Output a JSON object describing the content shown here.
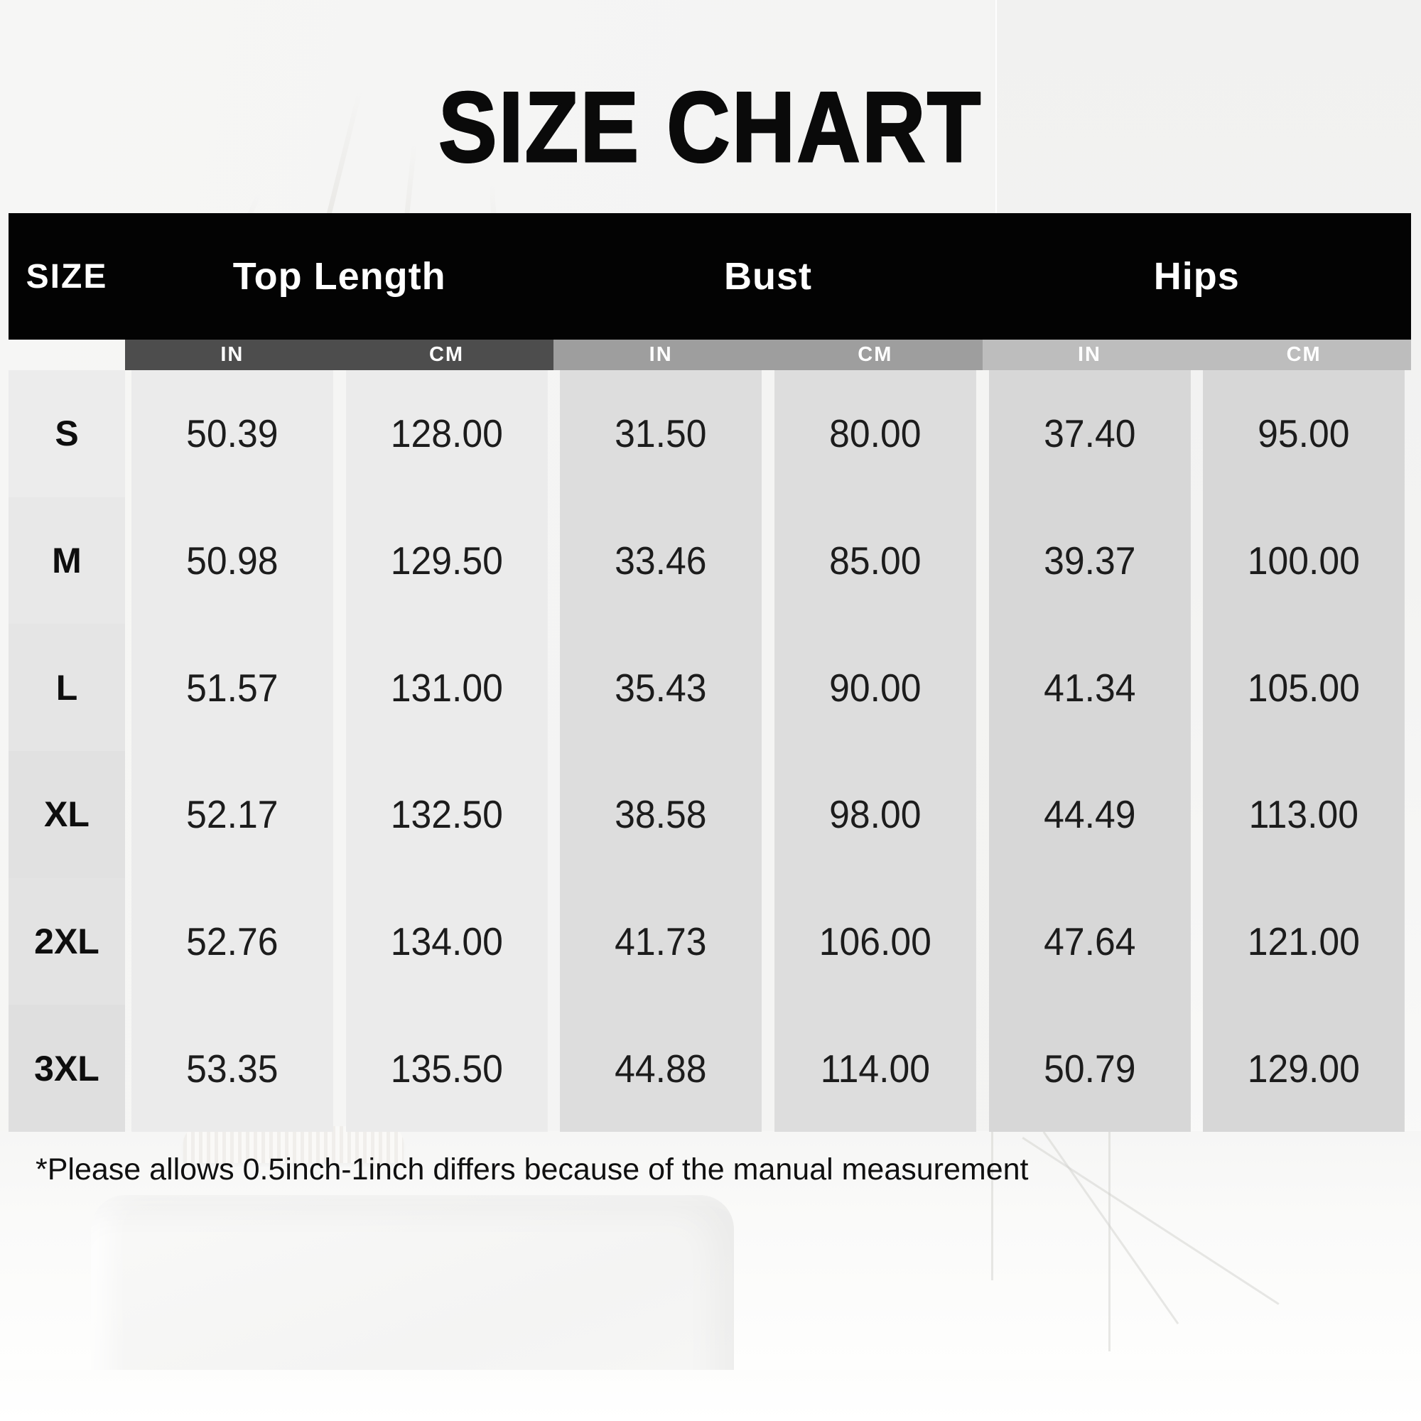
{
  "title": "SIZE CHART",
  "note": "*Please allows 0.5inch-1inch differs because of the manual measurement",
  "table": {
    "size_header": "SIZE",
    "groups": [
      {
        "label": "Top Length",
        "units": [
          "IN",
          "CM"
        ]
      },
      {
        "label": "Bust",
        "units": [
          "IN",
          "CM"
        ]
      },
      {
        "label": "Hips",
        "units": [
          "IN",
          "CM"
        ]
      }
    ],
    "rows": [
      {
        "size": "S",
        "values": [
          "50.39",
          "128.00",
          "31.50",
          "80.00",
          "37.40",
          "95.00"
        ]
      },
      {
        "size": "M",
        "values": [
          "50.98",
          "129.50",
          "33.46",
          "85.00",
          "39.37",
          "100.00"
        ]
      },
      {
        "size": "L",
        "values": [
          "51.57",
          "131.00",
          "35.43",
          "90.00",
          "41.34",
          "105.00"
        ]
      },
      {
        "size": "XL",
        "values": [
          "52.17",
          "132.50",
          "38.58",
          "98.00",
          "44.49",
          "113.00"
        ]
      },
      {
        "size": "2XL",
        "values": [
          "52.76",
          "134.00",
          "41.73",
          "106.00",
          "47.64",
          "121.00"
        ]
      },
      {
        "size": "3XL",
        "values": [
          "53.35",
          "135.50",
          "44.88",
          "114.00",
          "50.79",
          "129.00"
        ]
      }
    ]
  },
  "colors": {
    "header_bg": "#030303",
    "header_text": "#ffffff",
    "unit_band_top_length": "#4d4d4d",
    "unit_band_bust": "#9e9e9e",
    "unit_band_hips": "#bdbdbd",
    "column_bg_top_length": "#ebebeb",
    "column_bg_bust": "#dddddd",
    "column_bg_hips": "#d7d7d7",
    "title_text": "#0a0a0a"
  },
  "chart_data": {
    "type": "table",
    "title": "SIZE CHART",
    "columns": [
      "SIZE",
      "Top Length (IN)",
      "Top Length (CM)",
      "Bust (IN)",
      "Bust (CM)",
      "Hips (IN)",
      "Hips (CM)"
    ],
    "rows": [
      [
        "S",
        50.39,
        128.0,
        31.5,
        80.0,
        37.4,
        95.0
      ],
      [
        "M",
        50.98,
        129.5,
        33.46,
        85.0,
        39.37,
        100.0
      ],
      [
        "L",
        51.57,
        131.0,
        35.43,
        90.0,
        41.34,
        105.0
      ],
      [
        "XL",
        52.17,
        132.5,
        38.58,
        98.0,
        44.49,
        113.0
      ],
      [
        "2XL",
        52.76,
        134.0,
        41.73,
        106.0,
        47.64,
        121.0
      ],
      [
        "3XL",
        53.35,
        135.5,
        44.88,
        114.0,
        50.79,
        129.0
      ]
    ],
    "footnote": "*Please allows 0.5inch-1inch differs because of the manual measurement"
  }
}
